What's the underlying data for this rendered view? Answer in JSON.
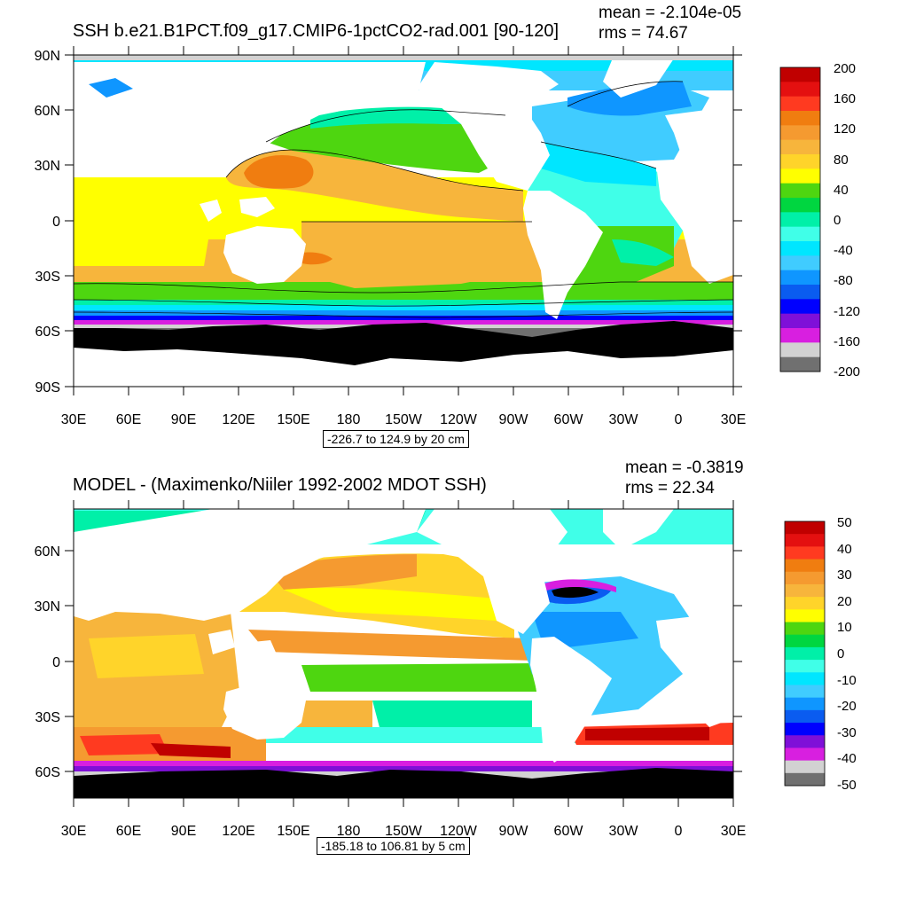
{
  "panels": [
    {
      "title": "SSH b.e21.B1PCT.f09_g17.CMIP6-1pctCO2-rad.001 [90-120]",
      "mean": "mean = -2.104e-05",
      "rms": "rms = 74.67",
      "range": "-226.7 to 124.9 by 20 cm",
      "lat_labels": [
        "90N",
        "60N",
        "30N",
        "0",
        "30S",
        "60S",
        "90S"
      ],
      "lon_labels": [
        "30E",
        "60E",
        "90E",
        "120E",
        "150E",
        "180",
        "150W",
        "120W",
        "90W",
        "60W",
        "30W",
        "0",
        "30E"
      ],
      "colorbar": {
        "labels": [
          "200",
          "160",
          "120",
          "80",
          "40",
          "0",
          "-40",
          "-80",
          "-120",
          "-160",
          "-200"
        ],
        "colors": [
          "#c00000",
          "#e41010",
          "#ff3a20",
          "#f07d10",
          "#f59a30",
          "#f7b53c",
          "#ffd42a",
          "#ffff00",
          "#4ed610",
          "#00d640",
          "#00f0a8",
          "#40ffe8",
          "#00e6ff",
          "#40ccff",
          "#0f96ff",
          "#0a5cf0",
          "#0000ff",
          "#7f10d8",
          "#d81fe0",
          "#d2d2d2",
          "#707070"
        ]
      }
    },
    {
      "title": "MODEL - (Maximenko/Niiler 1992-2002 MDOT SSH)",
      "mean": "mean = -0.3819",
      "rms": "rms = 22.34",
      "range": "-185.18 to 106.81 by 5 cm",
      "lat_labels": [
        "60N",
        "30N",
        "0",
        "30S",
        "60S"
      ],
      "lon_labels": [
        "30E",
        "60E",
        "90E",
        "120E",
        "150E",
        "180",
        "150W",
        "120W",
        "90W",
        "60W",
        "30W",
        "0",
        "30E"
      ],
      "colorbar": {
        "labels": [
          "50",
          "40",
          "30",
          "20",
          "10",
          "0",
          "-10",
          "-20",
          "-30",
          "-40",
          "-50"
        ],
        "colors": [
          "#c00000",
          "#e41010",
          "#ff3a20",
          "#f07d10",
          "#f59a30",
          "#f7b53c",
          "#ffd42a",
          "#ffff00",
          "#4ed610",
          "#00d640",
          "#00f0a8",
          "#40ffe8",
          "#00e6ff",
          "#40ccff",
          "#0f96ff",
          "#0a5cf0",
          "#0000ff",
          "#7f10d8",
          "#d81fe0",
          "#d2d2d2",
          "#707070"
        ]
      }
    }
  ]
}
